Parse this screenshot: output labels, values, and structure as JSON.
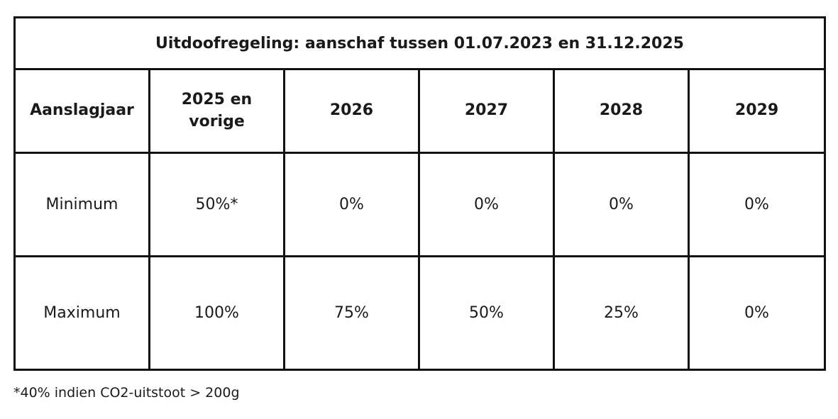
{
  "table": {
    "title": "Uitdoofregeling: aanschaf tussen 01.07.2023 en 31.12.2025",
    "headers": [
      "Aanslagjaar",
      "2025 en vorige",
      "2026",
      "2027",
      "2028",
      "2029"
    ],
    "rows": [
      {
        "label": "Minimum",
        "values": [
          "50%*",
          "0%",
          "0%",
          "0%",
          "0%"
        ]
      },
      {
        "label": "Maximum",
        "values": [
          "100%",
          "75%",
          "50%",
          "25%",
          "0%"
        ]
      }
    ]
  },
  "footnote": "*40% indien CO2-uitstoot > 200g"
}
